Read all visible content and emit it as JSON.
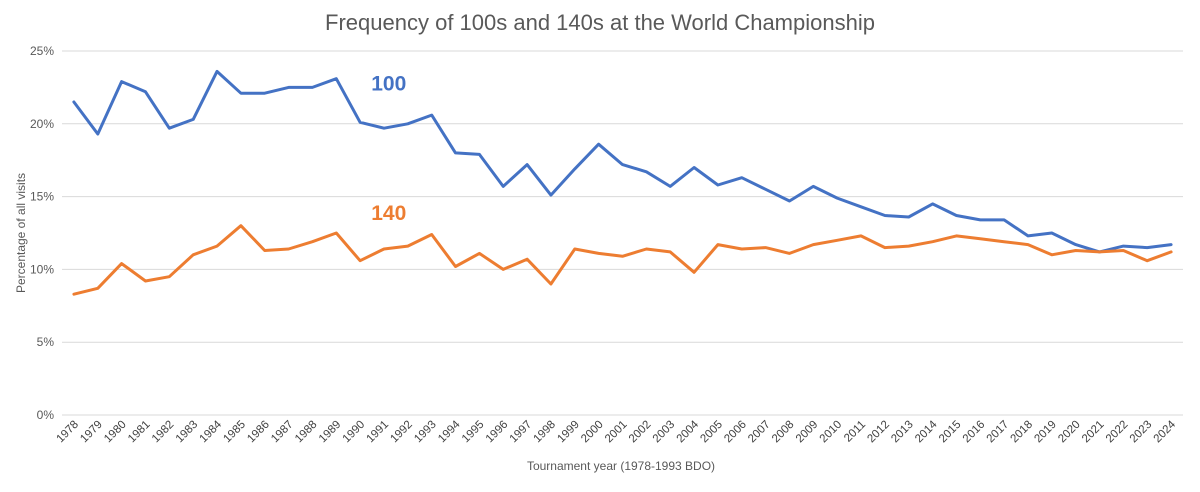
{
  "colors": {
    "series_100": "#4472C4",
    "series_140": "#ED7D31",
    "grid": "#D9D9D9",
    "text": "#595959"
  },
  "chart_data": {
    "type": "line",
    "title": "Frequency of 100s and 140s at the World Championship",
    "xlabel": "Tournament year (1978-1993 BDO)",
    "ylabel": "Percentage of all visits",
    "ylim": [
      0,
      25
    ],
    "yticks": [
      "0%",
      "5%",
      "10%",
      "15%",
      "20%",
      "25%"
    ],
    "grid": "horizontal",
    "legend": "none",
    "x": [
      "1978",
      "1979",
      "1980",
      "1981",
      "1982",
      "1983",
      "1984",
      "1985",
      "1986",
      "1987",
      "1988",
      "1989",
      "1990",
      "1991",
      "1992",
      "1993",
      "1994",
      "1995",
      "1996",
      "1997",
      "1998",
      "1999",
      "2000",
      "2001",
      "2002",
      "2003",
      "2004",
      "2005",
      "2006",
      "2007",
      "2008",
      "2009",
      "2010",
      "2011",
      "2012",
      "2013",
      "2014",
      "2015",
      "2016",
      "2017",
      "2018",
      "2019",
      "2020",
      "2021",
      "2022",
      "2023",
      "2024"
    ],
    "series": [
      {
        "name": "100",
        "color": "#4472C4",
        "values": [
          21.5,
          19.3,
          22.9,
          22.2,
          19.7,
          20.3,
          23.6,
          22.1,
          22.1,
          22.5,
          22.5,
          23.1,
          20.1,
          19.7,
          20.0,
          20.6,
          18.0,
          17.9,
          15.7,
          17.2,
          15.1,
          16.9,
          18.6,
          17.2,
          16.7,
          15.7,
          17.0,
          15.8,
          16.3,
          15.5,
          14.7,
          15.7,
          14.9,
          14.3,
          13.7,
          13.6,
          14.5,
          13.7,
          13.4,
          13.4,
          12.3,
          12.5,
          11.7,
          11.2,
          11.6,
          11.5,
          11.7
        ]
      },
      {
        "name": "140",
        "color": "#ED7D31",
        "values": [
          8.3,
          8.7,
          10.4,
          9.2,
          9.5,
          11.0,
          11.6,
          13.0,
          11.3,
          11.4,
          11.9,
          12.5,
          10.6,
          11.4,
          11.6,
          12.4,
          10.2,
          11.1,
          10.0,
          10.7,
          9.0,
          11.4,
          11.1,
          10.9,
          11.4,
          11.2,
          9.8,
          11.7,
          11.4,
          11.5,
          11.1,
          11.7,
          12.0,
          12.3,
          11.5,
          11.6,
          11.9,
          12.3,
          12.1,
          11.9,
          11.7,
          11.0,
          11.3,
          11.2,
          11.3,
          10.6,
          11.2
        ]
      }
    ]
  }
}
